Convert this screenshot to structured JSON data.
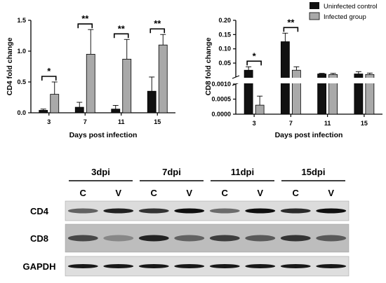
{
  "chart_data": [
    {
      "type": "bar",
      "ylabel": "CD4 fold change",
      "xlabel": "Days post infection",
      "categories": [
        "3",
        "7",
        "11",
        "15"
      ],
      "ylim": [
        0,
        1.5
      ],
      "yticks": [
        "0.0",
        "0.5",
        "1.0",
        "1.5"
      ],
      "series": [
        {
          "values": [
            0.04,
            0.09,
            0.06,
            0.35
          ],
          "errors": [
            0.02,
            0.08,
            0.06,
            0.23
          ],
          "color": "#111111"
        },
        {
          "values": [
            0.3,
            0.95,
            0.87,
            1.1
          ],
          "errors": [
            0.2,
            0.4,
            0.32,
            0.17
          ],
          "color": "#a9a9a9"
        }
      ],
      "significance": [
        "*",
        "**",
        "**",
        "**"
      ]
    },
    {
      "type": "bar",
      "ylabel": "CD8 fold change",
      "xlabel": "Days post infection",
      "categories": [
        "3",
        "7",
        "11",
        "15"
      ],
      "broken_axis": true,
      "ylim_lower": [
        0,
        0.001
      ],
      "ylim_upper": [
        0.001,
        0.2
      ],
      "yticks_lower": [
        "0.0000",
        "0.0005",
        "0.0010"
      ],
      "yticks_upper": [
        "0.05",
        "0.10",
        "0.15",
        "0.20"
      ],
      "series": [
        {
          "name": "Uninfected control",
          "values": [
            0.025,
            0.125,
            0.012,
            0.012
          ],
          "errors": [
            0.012,
            0.03,
            0.002,
            0.008
          ],
          "color": "#111111"
        },
        {
          "name": "Infected group",
          "values": [
            0.0003,
            0.025,
            0.01,
            0.01
          ],
          "errors": [
            0.0003,
            0.012,
            0.004,
            0.005
          ],
          "color": "#a9a9a9"
        }
      ],
      "significance": [
        "*",
        "**",
        "",
        ""
      ],
      "legend_position": "top-right"
    }
  ],
  "blot": {
    "timepoints": [
      "3dpi",
      "7dpi",
      "11dpi",
      "15dpi"
    ],
    "lane_labels": [
      "C",
      "V",
      "C",
      "V",
      "C",
      "V",
      "C",
      "V"
    ],
    "rows": [
      "CD4",
      "CD8",
      "GAPDH"
    ]
  }
}
